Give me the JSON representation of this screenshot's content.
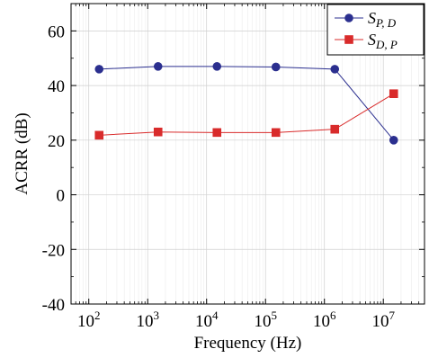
{
  "chart_data": {
    "type": "line",
    "xlabel": "Frequency (Hz)",
    "ylabel": "ACRR (dB)",
    "x_scale": "log",
    "xlim": [
      50,
      50000000
    ],
    "ylim": [
      -40,
      70
    ],
    "grid": true,
    "legend_position": "top-right",
    "x_ticks": [
      {
        "value": 100,
        "base": "10",
        "exp": "2"
      },
      {
        "value": 1000,
        "base": "10",
        "exp": "3"
      },
      {
        "value": 10000,
        "base": "10",
        "exp": "4"
      },
      {
        "value": 100000,
        "base": "10",
        "exp": "5"
      },
      {
        "value": 1000000,
        "base": "10",
        "exp": "6"
      },
      {
        "value": 10000000,
        "base": "10",
        "exp": "7"
      }
    ],
    "y_ticks": [
      {
        "value": 60,
        "label": "60"
      },
      {
        "value": 40,
        "label": "40"
      },
      {
        "value": 20,
        "label": "20"
      },
      {
        "value": 0,
        "label": "0"
      },
      {
        "value": -20,
        "label": "-20"
      },
      {
        "value": -40,
        "label": "-40"
      }
    ],
    "x": [
      150,
      1500,
      15000,
      150000,
      1500000,
      15000000
    ],
    "series": [
      {
        "name": "S_{P,D}",
        "legend_main": "S",
        "legend_sub": "P, D",
        "color": "#2b2f8f",
        "marker": "circle",
        "values": [
          46,
          47,
          47,
          46.8,
          46,
          20
        ]
      },
      {
        "name": "S_{D,P}",
        "legend_main": "S",
        "legend_sub": "D, P",
        "color": "#d92b2b",
        "marker": "square",
        "values": [
          21.8,
          23,
          22.8,
          22.8,
          24,
          37
        ]
      }
    ]
  }
}
